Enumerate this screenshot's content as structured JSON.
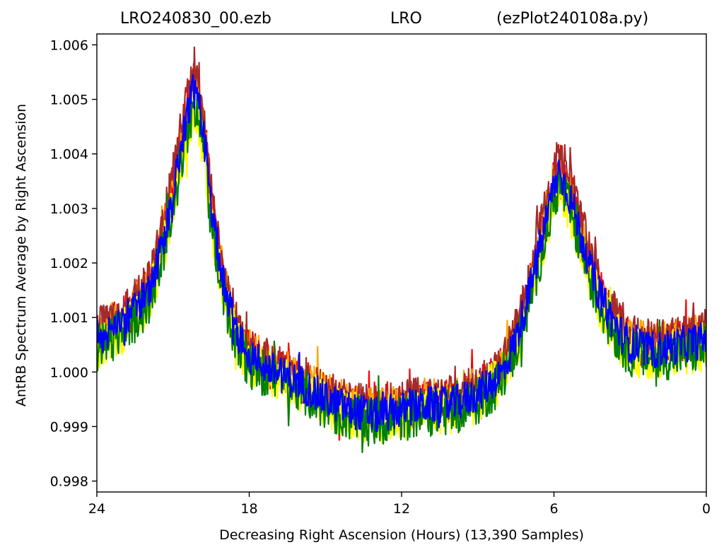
{
  "title": {
    "left": "LRO240830_00.ezb",
    "middle": "LRO",
    "right": "(ezPlot240108a.py)"
  },
  "chart_data": {
    "type": "line",
    "xlabel": "Decreasing Right Ascension (Hours) (13,390 Samples)",
    "ylabel": "AntRB Spectrum Average by Right Ascension",
    "xlim": [
      24,
      0
    ],
    "ylim": [
      0.9978,
      1.0062
    ],
    "x_ticks": [
      {
        "value": 24,
        "label": "24"
      },
      {
        "value": 18,
        "label": "18"
      },
      {
        "value": 12,
        "label": "12"
      },
      {
        "value": 6,
        "label": "6"
      },
      {
        "value": 0,
        "label": "0"
      }
    ],
    "y_ticks": [
      {
        "value": 0.998,
        "label": "0.998"
      },
      {
        "value": 0.999,
        "label": "0.999"
      },
      {
        "value": 1.0,
        "label": "1.000"
      },
      {
        "value": 1.001,
        "label": "1.001"
      },
      {
        "value": 1.002,
        "label": "1.002"
      },
      {
        "value": 1.003,
        "label": "1.003"
      },
      {
        "value": 1.004,
        "label": "1.004"
      },
      {
        "value": 1.005,
        "label": "1.005"
      },
      {
        "value": 1.006,
        "label": "1.006"
      }
    ],
    "grid": false,
    "legend": "none",
    "series": [
      {
        "color": "#ff0000",
        "noise": 0.00042,
        "offset": 6e-05,
        "peak_scale": 1.02,
        "x": [
          24,
          23,
          22,
          21.5,
          21,
          20.5,
          20.2,
          20,
          19.7,
          19.5,
          19,
          18.5,
          18,
          17,
          16,
          15,
          14,
          13,
          12,
          11,
          10,
          9,
          8,
          7.5,
          7,
          6.5,
          6,
          5.8,
          5.6,
          5.3,
          5,
          4.5,
          4,
          3.5,
          3,
          2,
          1,
          0
        ],
        "y": [
          1.0006,
          1.0009,
          1.0014,
          1.0022,
          1.0033,
          1.0046,
          1.0052,
          1.005,
          1.004,
          1.003,
          1.0016,
          1.0007,
          1.0003,
          1.0,
          0.9998,
          0.9995,
          0.9993,
          0.9992,
          0.9993,
          0.9994,
          0.9994,
          0.9996,
          1.0,
          1.0006,
          1.0014,
          1.0024,
          1.0034,
          1.0037,
          1.0035,
          1.0031,
          1.0026,
          1.0018,
          1.0012,
          1.0008,
          1.0005,
          1.0004,
          1.0005,
          1.0006
        ]
      },
      {
        "color": "#ffa500",
        "noise": 0.0004,
        "offset": 0.0001,
        "peak_scale": 1.0,
        "x": [
          24,
          23,
          22,
          21.5,
          21,
          20.5,
          20.2,
          20,
          19.7,
          19.5,
          19,
          18.5,
          18,
          17,
          16,
          15,
          14,
          13,
          12,
          11,
          10,
          9,
          8,
          7.5,
          7,
          6.5,
          6,
          5.8,
          5.6,
          5.3,
          5,
          4.5,
          4,
          3.5,
          3,
          2,
          1,
          0
        ],
        "y": [
          1.0006,
          1.0009,
          1.0014,
          1.0022,
          1.0033,
          1.0046,
          1.0052,
          1.005,
          1.004,
          1.003,
          1.0016,
          1.0007,
          1.0003,
          1.0,
          0.9998,
          0.9995,
          0.9993,
          0.9992,
          0.9993,
          0.9994,
          0.9994,
          0.9996,
          1.0,
          1.0006,
          1.0014,
          1.0024,
          1.0034,
          1.0037,
          1.0035,
          1.0031,
          1.0026,
          1.0018,
          1.0012,
          1.0008,
          1.0005,
          1.0004,
          1.0005,
          1.0006
        ]
      },
      {
        "color": "#a52a2a",
        "noise": 0.00038,
        "offset": 0.00016,
        "peak_scale": 1.05,
        "x": [
          24,
          23,
          22,
          21.5,
          21,
          20.5,
          20.2,
          20,
          19.7,
          19.5,
          19,
          18.5,
          18,
          17,
          16,
          15,
          14,
          13,
          12,
          11,
          10,
          9,
          8,
          7.5,
          7,
          6.5,
          6,
          5.8,
          5.6,
          5.3,
          5,
          4.5,
          4,
          3.5,
          3,
          2,
          1,
          0
        ],
        "y": [
          1.0006,
          1.0009,
          1.0014,
          1.0022,
          1.0033,
          1.0046,
          1.0052,
          1.005,
          1.004,
          1.003,
          1.0016,
          1.0007,
          1.0003,
          1.0,
          0.9998,
          0.9995,
          0.9993,
          0.9992,
          0.9993,
          0.9994,
          0.9994,
          0.9996,
          1.0,
          1.0006,
          1.0014,
          1.0024,
          1.0034,
          1.0037,
          1.0035,
          1.0031,
          1.0026,
          1.0018,
          1.0012,
          1.0008,
          1.0005,
          1.0004,
          1.0005,
          1.0006
        ]
      },
      {
        "color": "#ffff00",
        "noise": 0.00045,
        "offset": -0.0001,
        "peak_scale": 0.95,
        "x": [
          24,
          23,
          22,
          21.5,
          21,
          20.5,
          20.2,
          20,
          19.7,
          19.5,
          19,
          18.5,
          18,
          17,
          16,
          15,
          14,
          13,
          12,
          11,
          10,
          9,
          8,
          7.5,
          7,
          6.5,
          6,
          5.8,
          5.6,
          5.3,
          5,
          4.5,
          4,
          3.5,
          3,
          2,
          1,
          0
        ],
        "y": [
          1.0006,
          1.0009,
          1.0014,
          1.0022,
          1.0033,
          1.0046,
          1.0052,
          1.005,
          1.004,
          1.003,
          1.0016,
          1.0007,
          1.0003,
          1.0,
          0.9998,
          0.9995,
          0.9993,
          0.9992,
          0.9993,
          0.9994,
          0.9994,
          0.9996,
          1.0,
          1.0006,
          1.0014,
          1.0024,
          1.0034,
          1.0037,
          1.0035,
          1.0031,
          1.0026,
          1.0018,
          1.0012,
          1.0008,
          1.0005,
          1.0004,
          1.0005,
          1.0006
        ]
      },
      {
        "color": "#008000",
        "noise": 0.00044,
        "offset": -0.00014,
        "peak_scale": 0.97,
        "x": [
          24,
          23,
          22,
          21.5,
          21,
          20.5,
          20.2,
          20,
          19.7,
          19.5,
          19,
          18.5,
          18,
          17,
          16,
          15,
          14,
          13,
          12,
          11,
          10,
          9,
          8,
          7.5,
          7,
          6.5,
          6,
          5.8,
          5.6,
          5.3,
          5,
          4.5,
          4,
          3.5,
          3,
          2,
          1,
          0
        ],
        "y": [
          1.0006,
          1.0009,
          1.0014,
          1.0022,
          1.0033,
          1.0046,
          1.0052,
          1.005,
          1.004,
          1.003,
          1.0016,
          1.0007,
          1.0003,
          1.0,
          0.9998,
          0.9995,
          0.9993,
          0.9992,
          0.9993,
          0.9994,
          0.9994,
          0.9996,
          1.0,
          1.0006,
          1.0014,
          1.0024,
          1.0034,
          1.0037,
          1.0035,
          1.0031,
          1.0026,
          1.0018,
          1.0012,
          1.0008,
          1.0005,
          1.0004,
          1.0005,
          1.0006
        ]
      },
      {
        "color": "#0000ff",
        "noise": 0.00034,
        "offset": 0.0,
        "peak_scale": 1.0,
        "x": [
          24,
          23,
          22,
          21.5,
          21,
          20.5,
          20.2,
          20,
          19.7,
          19.5,
          19,
          18.5,
          18,
          17,
          16,
          15,
          14,
          13,
          12,
          11,
          10,
          9,
          8,
          7.5,
          7,
          6.5,
          6,
          5.8,
          5.6,
          5.3,
          5,
          4.5,
          4,
          3.5,
          3,
          2,
          1,
          0
        ],
        "y": [
          1.0006,
          1.0009,
          1.0014,
          1.0022,
          1.0033,
          1.0046,
          1.0052,
          1.005,
          1.004,
          1.003,
          1.0016,
          1.0007,
          1.0003,
          1.0,
          0.9998,
          0.9995,
          0.9993,
          0.9992,
          0.9993,
          0.9994,
          0.9994,
          0.9996,
          1.0,
          1.0006,
          1.0014,
          1.0024,
          1.0034,
          1.0037,
          1.0035,
          1.0031,
          1.0026,
          1.0018,
          1.0012,
          1.0008,
          1.0005,
          1.0004,
          1.0005,
          1.0006
        ]
      }
    ]
  }
}
